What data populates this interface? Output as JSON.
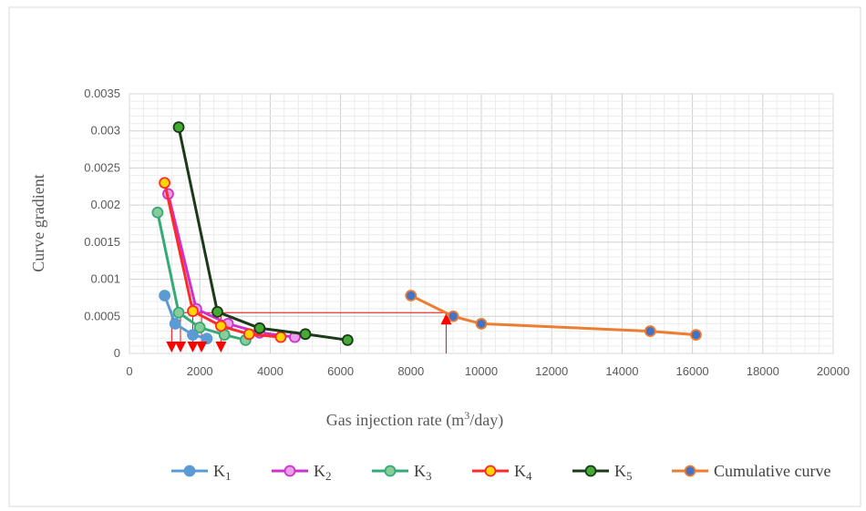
{
  "chart_data": {
    "type": "line",
    "xlabel_base": "Gas injection rate (m",
    "xlabel_sup": "3",
    "xlabel_tail": "/day)",
    "ylabel": "Curve gradient",
    "xlim": [
      0,
      20000
    ],
    "ylim": [
      0,
      0.0035
    ],
    "xticks": [
      "0",
      "2000",
      "4000",
      "6000",
      "8000",
      "10000",
      "12000",
      "14000",
      "16000",
      "18000",
      "20000"
    ],
    "yticks": [
      "0",
      "0.0005",
      "0.001",
      "0.0015",
      "0.002",
      "0.0025",
      "0.003",
      "0.0035"
    ],
    "grid": true,
    "legend_position": "bottom",
    "series": [
      {
        "name": "K",
        "sub": "1",
        "color": "#5B9BD5",
        "fill": "#5B9BD5",
        "points": [
          [
            1000,
            0.00078
          ],
          [
            1300,
            0.0004
          ],
          [
            1800,
            0.00025
          ],
          [
            2200,
            0.0002
          ]
        ]
      },
      {
        "name": "K",
        "sub": "2",
        "color": "#CC33CC",
        "fill": "#E8A0E8",
        "points": [
          [
            1100,
            0.00215
          ],
          [
            1900,
            0.0006
          ],
          [
            2800,
            0.0004
          ],
          [
            3700,
            0.00028
          ],
          [
            4700,
            0.00022
          ]
        ]
      },
      {
        "name": "K",
        "sub": "3",
        "color": "#33AA77",
        "fill": "#88CC99",
        "points": [
          [
            800,
            0.0019
          ],
          [
            1400,
            0.00055
          ],
          [
            2000,
            0.00035
          ],
          [
            2700,
            0.00025
          ],
          [
            3300,
            0.00018
          ]
        ]
      },
      {
        "name": "K",
        "sub": "4",
        "color": "#FF2A2A",
        "fill": "#FFD700",
        "points": [
          [
            1000,
            0.0023
          ],
          [
            1800,
            0.00057
          ],
          [
            2600,
            0.00037
          ],
          [
            3400,
            0.00026
          ],
          [
            4300,
            0.00022
          ]
        ]
      },
      {
        "name": "K",
        "sub": "5",
        "color": "#1A3A1A",
        "fill": "#44AA33",
        "points": [
          [
            1400,
            0.00305
          ],
          [
            2500,
            0.00056
          ],
          [
            3700,
            0.00034
          ],
          [
            5000,
            0.00026
          ],
          [
            6200,
            0.00018
          ]
        ]
      },
      {
        "name": "Cumulative curve",
        "sub": "",
        "color": "#ED7D31",
        "fill": "#4472C4",
        "points": [
          [
            8000,
            0.00078
          ],
          [
            9200,
            0.0005
          ],
          [
            10000,
            0.0004
          ],
          [
            14800,
            0.0003
          ],
          [
            16100,
            0.00025
          ]
        ]
      }
    ],
    "annotations": {
      "red_color": "#FF0000",
      "down_markers_x": [
        1200,
        1450,
        1800,
        2050,
        2600
      ],
      "guide_line": {
        "x": 9000,
        "y": 0.00055,
        "x_start": 1300
      }
    }
  }
}
